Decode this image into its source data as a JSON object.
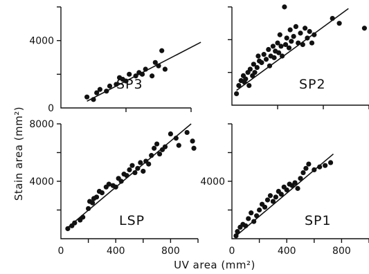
{
  "chart_data": [
    {
      "type": "scatter",
      "panel": "SP3",
      "label": "SP3",
      "xlim": [
        0,
        200
      ],
      "ylim": [
        0,
        6000
      ],
      "x_ticks": [],
      "y_ticks": [
        {
          "value": 0,
          "label": "0"
        },
        {
          "value": 4000,
          "label": "4000"
        }
      ],
      "points": [
        [
          40,
          650
        ],
        [
          50,
          500
        ],
        [
          55,
          900
        ],
        [
          60,
          1100
        ],
        [
          70,
          1000
        ],
        [
          75,
          1300
        ],
        [
          85,
          1400
        ],
        [
          90,
          1800
        ],
        [
          95,
          1700
        ],
        [
          100,
          1600
        ],
        [
          105,
          2000
        ],
        [
          115,
          1900
        ],
        [
          120,
          2100
        ],
        [
          125,
          2000
        ],
        [
          130,
          2300
        ],
        [
          140,
          1900
        ],
        [
          145,
          2700
        ],
        [
          150,
          2500
        ],
        [
          155,
          3400
        ],
        [
          160,
          2300
        ]
      ],
      "fit_line": [
        [
          40,
          400
        ],
        [
          215,
          3900
        ]
      ]
    },
    {
      "type": "scatter",
      "panel": "SP2",
      "label": "SP2",
      "xlim": [
        0,
        600
      ],
      "ylim": [
        0,
        6000
      ],
      "x_ticks": [],
      "y_ticks": [],
      "points": [
        [
          20,
          700
        ],
        [
          30,
          1200
        ],
        [
          40,
          1500
        ],
        [
          50,
          1800
        ],
        [
          55,
          1400
        ],
        [
          60,
          1600
        ],
        [
          70,
          2000
        ],
        [
          75,
          1200
        ],
        [
          80,
          2200
        ],
        [
          90,
          1800
        ],
        [
          95,
          2500
        ],
        [
          100,
          2000
        ],
        [
          110,
          2300
        ],
        [
          115,
          3000
        ],
        [
          120,
          2700
        ],
        [
          130,
          2600
        ],
        [
          140,
          3100
        ],
        [
          150,
          2800
        ],
        [
          160,
          3400
        ],
        [
          165,
          2400
        ],
        [
          170,
          3000
        ],
        [
          180,
          3600
        ],
        [
          185,
          2900
        ],
        [
          190,
          3300
        ],
        [
          200,
          3800
        ],
        [
          205,
          3200
        ],
        [
          210,
          4300
        ],
        [
          215,
          3600
        ],
        [
          220,
          3000
        ],
        [
          230,
          6000
        ],
        [
          235,
          3700
        ],
        [
          240,
          4100
        ],
        [
          250,
          3500
        ],
        [
          255,
          4600
        ],
        [
          260,
          3900
        ],
        [
          270,
          4200
        ],
        [
          280,
          4800
        ],
        [
          290,
          3800
        ],
        [
          300,
          4400
        ],
        [
          310,
          3700
        ],
        [
          320,
          4700
        ],
        [
          330,
          4100
        ],
        [
          340,
          4500
        ],
        [
          350,
          3800
        ],
        [
          360,
          4300
        ],
        [
          440,
          5300
        ],
        [
          470,
          5000
        ],
        [
          580,
          4700
        ]
      ],
      "fit_line": [
        [
          20,
          900
        ],
        [
          510,
          5900
        ]
      ]
    },
    {
      "type": "scatter",
      "panel": "LSP",
      "label": "LSP",
      "xlim": [
        0,
        1000
      ],
      "ylim": [
        0,
        8000
      ],
      "x_ticks": [
        {
          "value": 0,
          "label": "0"
        },
        {
          "value": 400,
          "label": "400"
        },
        {
          "value": 800,
          "label": "800"
        }
      ],
      "y_ticks": [
        {
          "value": 4000,
          "label": "4000"
        },
        {
          "value": 8000,
          "label": "8000"
        }
      ],
      "points": [
        [
          50,
          700
        ],
        [
          80,
          900
        ],
        [
          100,
          1100
        ],
        [
          140,
          1300
        ],
        [
          160,
          1500
        ],
        [
          200,
          2100
        ],
        [
          210,
          2600
        ],
        [
          230,
          2500
        ],
        [
          240,
          2800
        ],
        [
          260,
          2900
        ],
        [
          280,
          3300
        ],
        [
          300,
          3200
        ],
        [
          330,
          3600
        ],
        [
          350,
          3800
        ],
        [
          380,
          3700
        ],
        [
          400,
          3600
        ],
        [
          420,
          4200
        ],
        [
          440,
          4000
        ],
        [
          460,
          4500
        ],
        [
          480,
          4400
        ],
        [
          500,
          4800
        ],
        [
          520,
          5100
        ],
        [
          540,
          4600
        ],
        [
          560,
          4900
        ],
        [
          580,
          5300
        ],
        [
          600,
          4700
        ],
        [
          620,
          5400
        ],
        [
          640,
          5200
        ],
        [
          660,
          5800
        ],
        [
          680,
          6300
        ],
        [
          700,
          6600
        ],
        [
          720,
          5900
        ],
        [
          740,
          6200
        ],
        [
          760,
          6400
        ],
        [
          800,
          7300
        ],
        [
          840,
          7000
        ],
        [
          860,
          6500
        ],
        [
          920,
          7400
        ],
        [
          960,
          6800
        ],
        [
          970,
          6300
        ]
      ],
      "fit_line": [
        [
          40,
          700
        ],
        [
          950,
          8000
        ]
      ]
    },
    {
      "type": "scatter",
      "panel": "SP1",
      "label": "SP1",
      "xlim": [
        0,
        1000
      ],
      "ylim": [
        0,
        8000
      ],
      "x_ticks": [
        {
          "value": 0,
          "label": "0"
        },
        {
          "value": 400,
          "label": "400"
        },
        {
          "value": 800,
          "label": "800"
        }
      ],
      "y_ticks": [
        {
          "value": 4000,
          "label": "4000"
        }
      ],
      "points": [
        [
          30,
          200
        ],
        [
          40,
          500
        ],
        [
          60,
          800
        ],
        [
          80,
          1000
        ],
        [
          100,
          900
        ],
        [
          120,
          1400
        ],
        [
          140,
          1800
        ],
        [
          160,
          1200
        ],
        [
          180,
          1600
        ],
        [
          200,
          2000
        ],
        [
          220,
          2400
        ],
        [
          240,
          2200
        ],
        [
          260,
          2700
        ],
        [
          280,
          3000
        ],
        [
          300,
          2600
        ],
        [
          320,
          2900
        ],
        [
          340,
          3300
        ],
        [
          360,
          3100
        ],
        [
          380,
          3600
        ],
        [
          400,
          3400
        ],
        [
          420,
          3800
        ],
        [
          440,
          3700
        ],
        [
          460,
          3900
        ],
        [
          480,
          3500
        ],
        [
          500,
          4200
        ],
        [
          520,
          4600
        ],
        [
          540,
          4900
        ],
        [
          560,
          5200
        ],
        [
          600,
          4800
        ],
        [
          640,
          5000
        ],
        [
          680,
          5100
        ],
        [
          720,
          5300
        ]
      ],
      "fit_line": [
        [
          30,
          200
        ],
        [
          740,
          5900
        ]
      ]
    }
  ],
  "labels": {
    "y_axis_title": "Stain  area  (mm²)",
    "x_axis_title": "UV  area  (mm²)"
  }
}
